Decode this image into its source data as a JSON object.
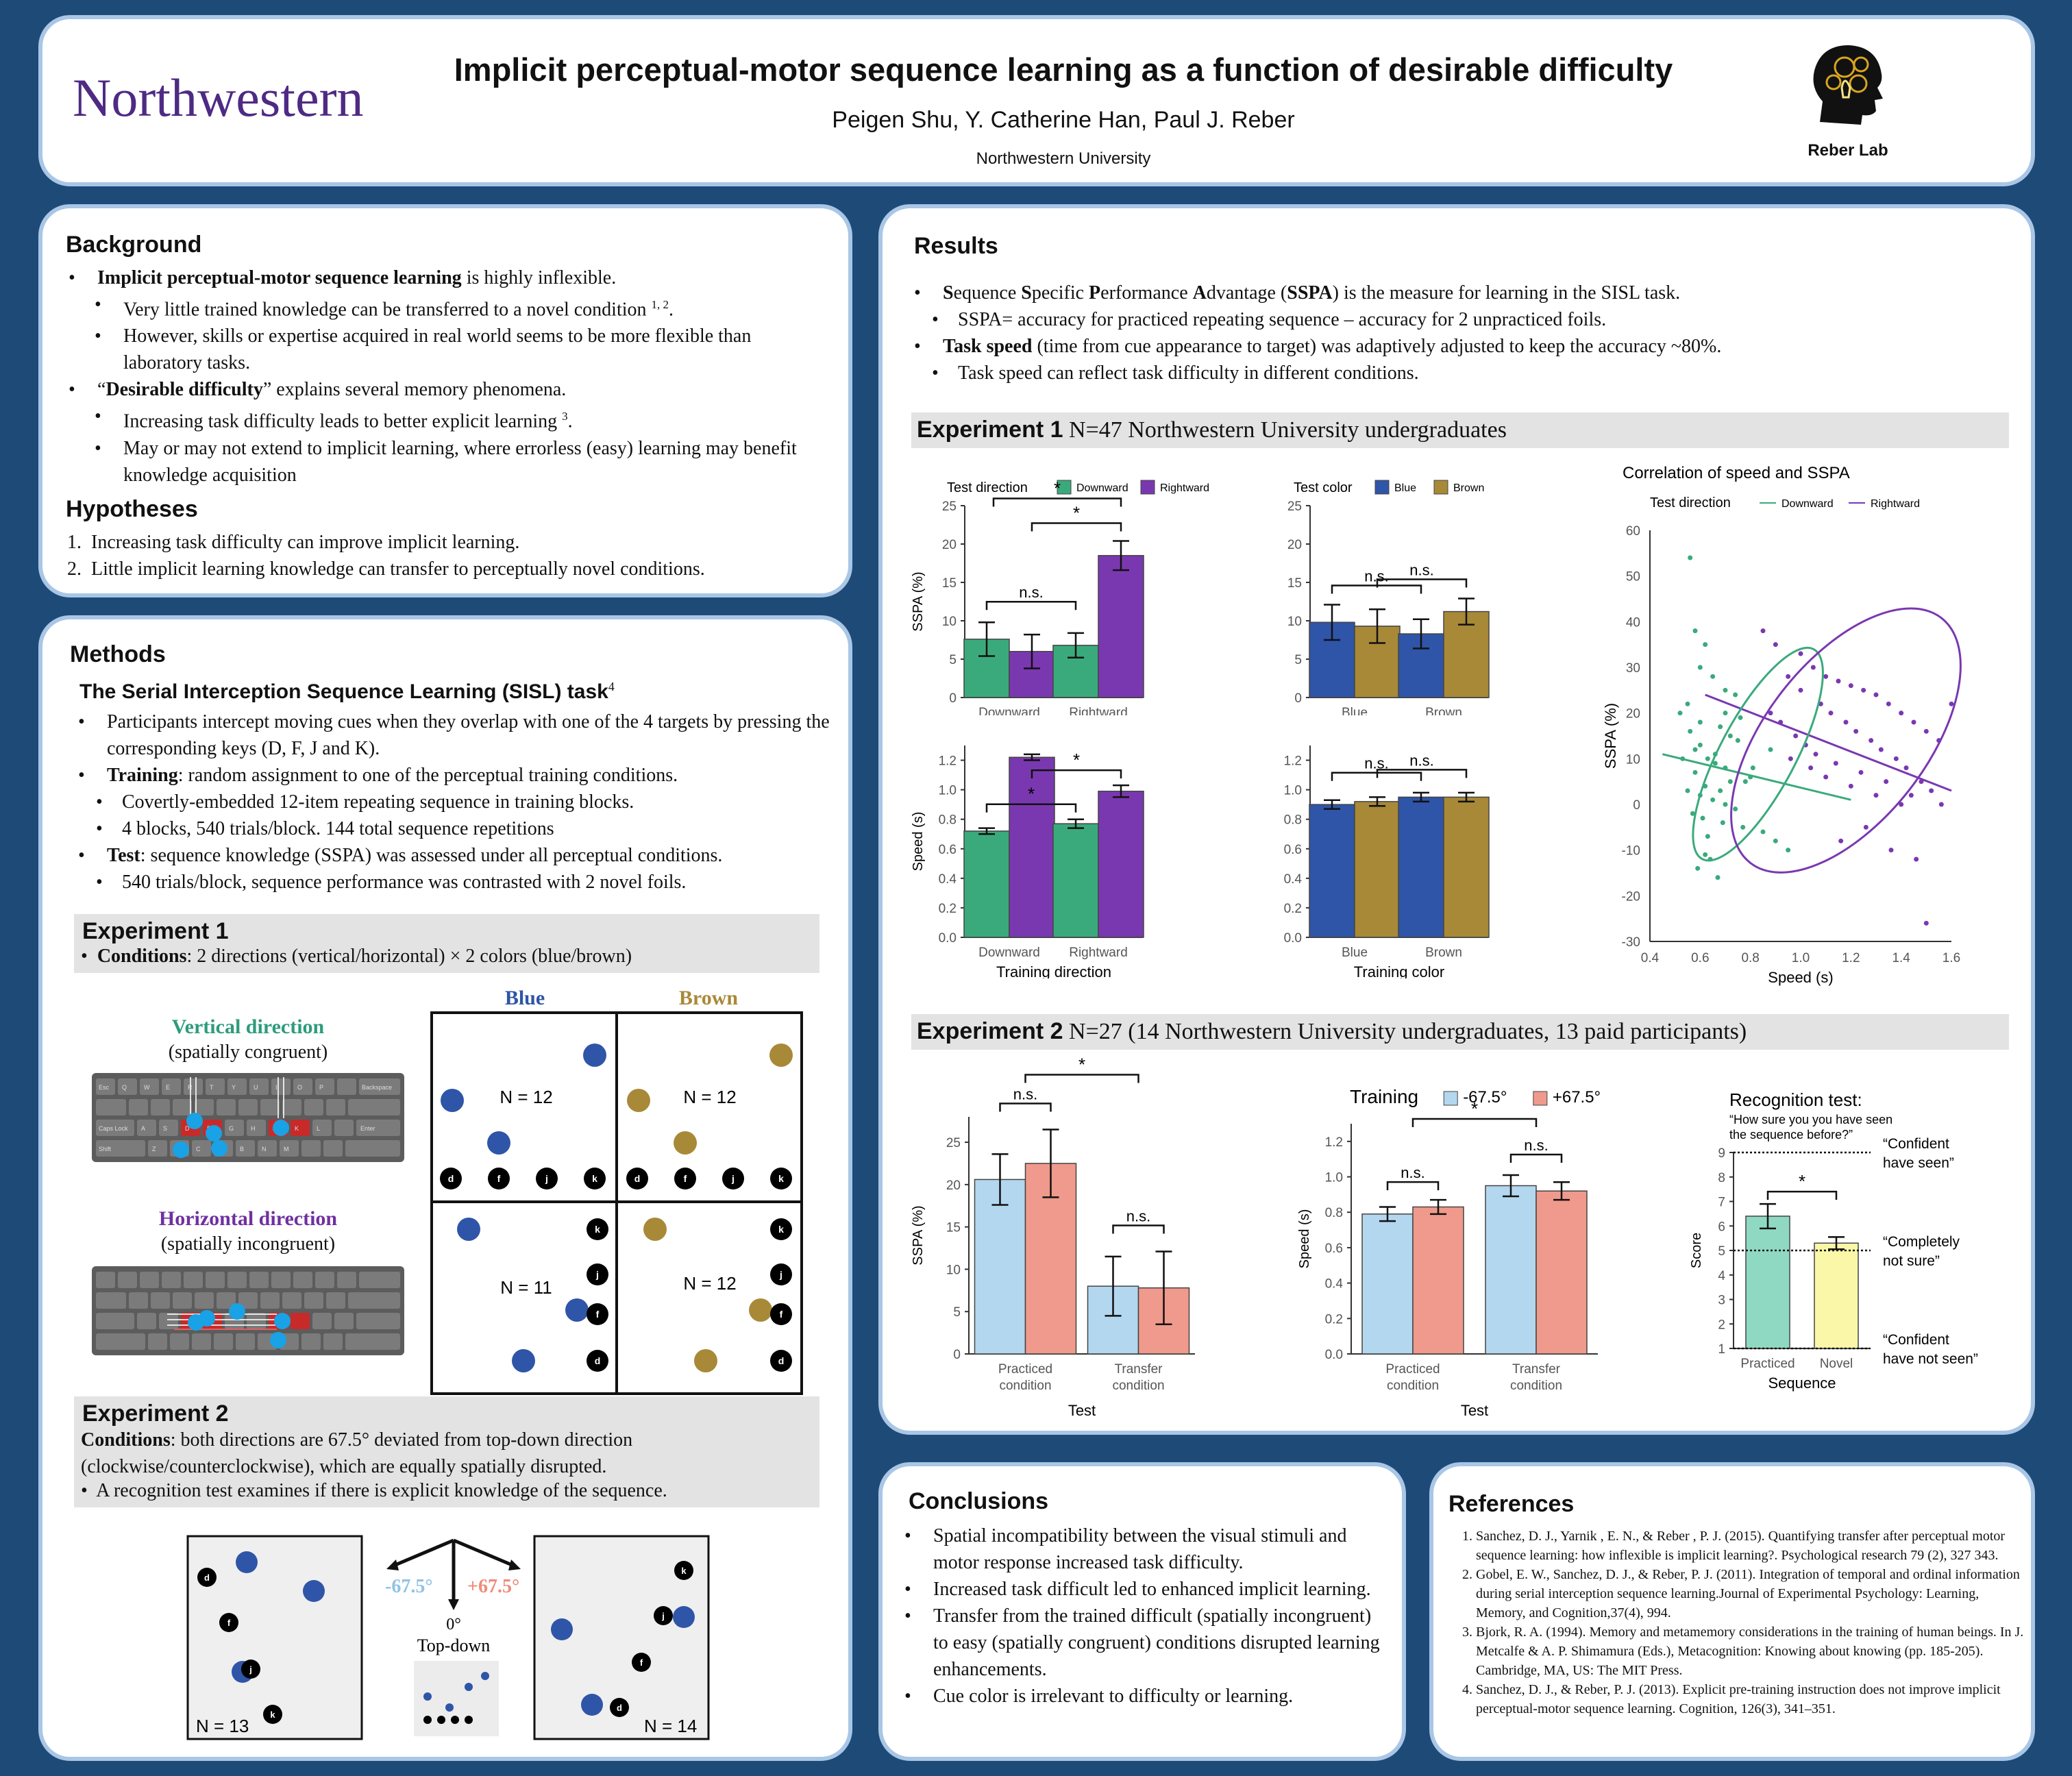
{
  "header": {
    "university": "Northwestern",
    "title": "Implicit perceptual-motor sequence learning as a function of desirable difficulty",
    "authors": "Peigen Shu, Y. Catherine Han, Paul J. Reber",
    "affiliation": "Northwestern University",
    "lab": "Reber Lab"
  },
  "background": {
    "heading": "Background",
    "b1_bold": "Implicit perceptual-motor sequence learning",
    "b1_rest": " is highly inflexible.",
    "b1a": "Very little trained knowledge can be transferred to a novel condition",
    "b1a_sup": "1, 2",
    "b1b": "However, skills or expertise acquired in real world seems to be more flexible than laboratory tasks.",
    "b2_pre": "“",
    "b2_bold": "Desirable difficulty",
    "b2_rest": "” explains several memory phenomena.",
    "b2a": "Increasing task difficulty leads to better explicit learning",
    "b2a_sup": "3",
    "b2b": "May or may not extend to implicit learning, where errorless (easy) learning may benefit knowledge acquisition"
  },
  "hypotheses": {
    "heading": "Hypotheses",
    "items": [
      "1. Increasing task difficulty can improve implicit learning.",
      "2. Little implicit learning knowledge can transfer to perceptually novel conditions."
    ]
  },
  "methods": {
    "heading": "Methods",
    "task_title": "The Serial Interception Sequence Learning (SISL) task",
    "task_sup": "4",
    "m1": "Participants intercept moving cues when they overlap with one of the 4 targets by pressing the corresponding keys (D, F, J and K).",
    "m2_bold": "Training",
    "m2_rest": ": random assignment to one of the perceptual training conditions.",
    "m2a": "Covertly-embedded 12-item repeating sequence in training blocks.",
    "m2b": "4 blocks, 540 trials/block. 144 total sequence repetitions",
    "m3_bold": "Test",
    "m3_rest": ": sequence knowledge (SSPA) was assessed under all  perceptual conditions.",
    "m3a": "540 trials/block, sequence performance was contrasted with 2 novel foils.",
    "exp1_title": "Experiment 1",
    "exp1_cond_bold": "Conditions",
    "exp1_cond_rest": ": 2 directions (vertical/horizontal) × 2 colors (blue/brown)",
    "blue_label": "Blue",
    "brown_label": "Brown",
    "vertical_label": "Vertical direction",
    "vertical_sub": "(spatially congruent)",
    "horizontal_label": "Horizontal direction",
    "horizontal_sub": "(spatially incongruent)",
    "n_tl": "N = 12",
    "n_tr": "N = 12",
    "n_bl": "N = 11",
    "n_br": "N = 12",
    "keys": [
      "d",
      "f",
      "j",
      "k"
    ],
    "exp2_title": "Experiment 2",
    "exp2_cond_bold": "Conditions",
    "exp2_cond_rest": ": both directions are 67.5° deviated from top-down direction (clockwise/counterclockwise), which are equally spatially disrupted.",
    "exp2_b": "A recognition test examines if there is explicit knowledge of the sequence.",
    "ang_neg": "-67.5°",
    "ang_pos": "+67.5°",
    "ang_zero": "0°",
    "topdown": "Top-down",
    "n2_left": "N = 13",
    "n2_right": "N = 14",
    "kb_keys": [
      "Esc",
      "Q",
      "W",
      "E",
      "R",
      "T",
      "Y",
      "U",
      "I",
      "O",
      "P",
      "Backspace",
      "Caps Lock",
      "A",
      "S",
      "D",
      "F",
      "G",
      "H",
      "J",
      "K",
      "L",
      "Enter",
      "Shift",
      "Z",
      "X",
      "C",
      "V",
      "B",
      "N",
      "M"
    ]
  },
  "results": {
    "heading": "Results",
    "r1_bold1": "S",
    "r1_t1": "equence ",
    "r1_bold2": "S",
    "r1_t2": "pecific ",
    "r1_bold3": "P",
    "r1_t3": "erformance ",
    "r1_bold4": "A",
    "r1_t4": "dvantage (",
    "r1_bold5": "SSPA",
    "r1_t5": ") is the measure for learning in the SISL task.",
    "r1a": "SSPA= accuracy for practiced repeating sequence – accuracy for 2 unpracticed foils.",
    "r2_bold": "Task speed",
    "r2_rest": " (time from cue appearance to target) was adaptively adjusted to keep the accuracy ~80%.",
    "r2a": "Task speed can reflect task difficulty in different conditions.",
    "exp1_bold": "Experiment 1",
    "exp1_rest": " N=47 Northwestern University undergraduates",
    "exp2_bold": "Experiment 2",
    "exp2_rest": " N=27 (14 Northwestern University undergraduates, 13 paid participants)"
  },
  "colors": {
    "green": "#3aaa7c",
    "purple": "#7a38b0",
    "blue": "#2f55a8",
    "brown": "#a88938",
    "lightblue": "#b3d7ef",
    "salmon": "#ef9a8c",
    "mint": "#8fd9c2",
    "lightyellow": "#fbf7a8"
  },
  "chart_data": [
    {
      "id": "e1_sspa_dir",
      "type": "bar",
      "legend_title": "Test direction",
      "legend": [
        "Downward",
        "Rightward"
      ],
      "categories": [
        "Downward",
        "Rightward"
      ],
      "series": [
        {
          "name": "Downward",
          "values": [
            7.6,
            6.8
          ],
          "err": [
            2.2,
            1.6
          ]
        },
        {
          "name": "Rightward",
          "values": [
            6.0,
            18.5
          ],
          "err": [
            2.2,
            1.9
          ]
        }
      ],
      "ylabel": "SSPA (%)",
      "ylim": [
        0,
        25
      ],
      "yticks": [
        "0",
        "5",
        "10",
        "15",
        "20",
        "25"
      ],
      "sig": [
        "n.s.",
        "*",
        "*"
      ]
    },
    {
      "id": "e1_sspa_color",
      "type": "bar",
      "legend_title": "Test color",
      "legend": [
        "Blue",
        "Brown"
      ],
      "categories": [
        "Blue",
        "Brown"
      ],
      "series": [
        {
          "name": "Blue",
          "values": [
            9.8,
            8.3
          ],
          "err": [
            2.3,
            1.9
          ]
        },
        {
          "name": "Brown",
          "values": [
            9.3,
            11.2
          ],
          "err": [
            2.2,
            1.7
          ]
        }
      ],
      "ylim": [
        0,
        25
      ],
      "yticks": [
        "0",
        "5",
        "10",
        "15",
        "20",
        "25"
      ],
      "sig": [
        "n.s.",
        "n.s."
      ]
    },
    {
      "id": "e1_speed_dir",
      "type": "bar",
      "categories": [
        "Downward",
        "Rightward"
      ],
      "series": [
        {
          "name": "Downward",
          "values": [
            0.72,
            0.77
          ],
          "err": [
            0.02,
            0.03
          ]
        },
        {
          "name": "Rightward",
          "values": [
            1.22,
            0.99
          ],
          "err": [
            0.02,
            0.04
          ]
        }
      ],
      "ylabel": "Speed (s)",
      "xlabel": "Training direction",
      "ylim": [
        0,
        1.3
      ],
      "yticks": [
        "0.0",
        "0.2",
        "0.4",
        "0.6",
        "0.8",
        "1.0",
        "1.2"
      ],
      "sig": [
        "*",
        "*"
      ]
    },
    {
      "id": "e1_speed_color",
      "type": "bar",
      "categories": [
        "Blue",
        "Brown"
      ],
      "series": [
        {
          "name": "Blue",
          "values": [
            0.9,
            0.95
          ],
          "err": [
            0.03,
            0.03
          ]
        },
        {
          "name": "Brown",
          "values": [
            0.92,
            0.95
          ],
          "err": [
            0.03,
            0.03
          ]
        }
      ],
      "xlabel": "Training color",
      "ylim": [
        0,
        1.3
      ],
      "yticks": [
        "0.0",
        "0.2",
        "0.4",
        "0.6",
        "0.8",
        "1.0",
        "1.2"
      ],
      "sig": [
        "n.s.",
        "n.s."
      ]
    },
    {
      "id": "e1_scatter",
      "type": "scatter",
      "title": "Correlation of speed and SSPA",
      "legend_title": "Test direction",
      "legend": [
        "Downward",
        "Rightward"
      ],
      "xlabel": "Speed (s)",
      "ylabel": "SSPA (%)",
      "xlim": [
        0.4,
        1.6
      ],
      "ylim": [
        -30,
        60
      ],
      "xticks": [
        "0.4",
        "0.6",
        "0.8",
        "1.0",
        "1.2",
        "1.4",
        "1.6"
      ],
      "yticks": [
        "-30",
        "-20",
        "-10",
        "0",
        "10",
        "20",
        "30",
        "40",
        "50",
        "60"
      ],
      "series": [
        {
          "name": "Downward",
          "x": [
            0.56,
            0.58,
            0.62,
            0.6,
            0.65,
            0.7,
            0.55,
            0.52,
            0.6,
            0.68,
            0.72,
            0.75,
            0.58,
            0.63,
            0.66,
            0.7,
            0.8,
            0.78,
            0.62,
            0.55,
            0.6,
            0.65,
            0.7,
            0.74,
            0.57,
            0.61,
            0.69,
            0.77,
            0.85,
            0.9,
            0.95,
            0.64,
            0.59,
            0.67,
            0.72,
            0.81,
            0.66,
            0.6,
            0.56,
            0.7,
            0.74,
            0.63,
            0.68,
            0.58,
            0.62,
            0.53,
            0.88,
            0.76
          ],
          "y": [
            54,
            38,
            35,
            30,
            28,
            25,
            22,
            20,
            18,
            17,
            15,
            14,
            12,
            10,
            9,
            8,
            6,
            5,
            4,
            3,
            2,
            1,
            0,
            -1,
            -2,
            -3,
            -4,
            -5,
            -6,
            -8,
            -10,
            -12,
            -14,
            -16,
            5,
            8,
            11,
            13,
            16,
            20,
            24,
            -7,
            3,
            7,
            -11,
            10,
            12,
            19
          ]
        },
        {
          "name": "Rightward",
          "x": [
            0.85,
            0.9,
            1.0,
            1.05,
            1.1,
            1.15,
            1.2,
            1.25,
            1.3,
            1.35,
            1.4,
            1.45,
            1.5,
            1.55,
            1.6,
            0.95,
            1.0,
            1.08,
            1.12,
            1.18,
            1.22,
            1.28,
            1.32,
            1.38,
            1.42,
            1.48,
            1.52,
            0.88,
            0.92,
            0.98,
            1.02,
            1.06,
            1.14,
            1.24,
            1.34,
            1.44,
            1.56,
            1.26,
            1.16,
            1.36,
            1.46,
            0.96,
            1.04,
            1.1,
            1.2,
            1.3,
            1.4,
            1.5
          ],
          "y": [
            38,
            35,
            33,
            30,
            28,
            27,
            26,
            25,
            24,
            22,
            20,
            18,
            16,
            14,
            22,
            28,
            25,
            22,
            20,
            18,
            16,
            14,
            12,
            10,
            8,
            5,
            3,
            20,
            18,
            15,
            13,
            11,
            9,
            7,
            5,
            2,
            0,
            -5,
            -8,
            -10,
            -12,
            10,
            8,
            6,
            4,
            2,
            0,
            -26
          ]
        }
      ],
      "fit_lines": [
        {
          "name": "Downward",
          "x": [
            0.45,
            1.2
          ],
          "y": [
            11,
            1
          ]
        },
        {
          "name": "Rightward",
          "x": [
            0.62,
            1.6
          ],
          "y": [
            24,
            3
          ]
        }
      ]
    },
    {
      "id": "e2_sspa",
      "type": "bar",
      "legend_title": "Training",
      "legend": [
        "-67.5°",
        "+67.5°"
      ],
      "categories": [
        "Practiced\ncondition",
        "Transfer\ncondition"
      ],
      "series": [
        {
          "name": "-67.5°",
          "values": [
            20.6,
            8.0
          ],
          "err": [
            3.0,
            3.5
          ]
        },
        {
          "name": "+67.5°",
          "values": [
            22.5,
            7.8
          ],
          "err": [
            4.0,
            4.3
          ]
        }
      ],
      "ylabel": "SSPA (%)",
      "xlabel": "Test",
      "ylim": [
        0,
        28
      ],
      "yticks": [
        "0",
        "5",
        "10",
        "15",
        "20",
        "25"
      ],
      "sig": [
        "n.s.",
        "n.s.",
        "*"
      ]
    },
    {
      "id": "e2_speed",
      "type": "bar",
      "categories": [
        "Practiced\ncondition",
        "Transfer\ncondition"
      ],
      "series": [
        {
          "name": "-67.5°",
          "values": [
            0.79,
            0.95
          ],
          "err": [
            0.04,
            0.06
          ]
        },
        {
          "name": "+67.5°",
          "values": [
            0.83,
            0.92
          ],
          "err": [
            0.04,
            0.05
          ]
        }
      ],
      "ylabel": "Speed (s)",
      "xlabel": "Test",
      "ylim": [
        0,
        1.3
      ],
      "yticks": [
        "0.0",
        "0.2",
        "0.4",
        "0.6",
        "0.8",
        "1.0",
        "1.2"
      ],
      "sig": [
        "n.s.",
        "n.s.",
        "*"
      ]
    },
    {
      "id": "e2_recog",
      "type": "bar",
      "title": "Recognition test:",
      "subtitle": "“How sure you you have seen the sequence before?”",
      "categories": [
        "Practiced",
        "Novel"
      ],
      "values": [
        6.4,
        5.3
      ],
      "err": [
        0.5,
        0.25
      ],
      "ylabel": "Score",
      "xlabel": "Sequence",
      "ylim": [
        1,
        9
      ],
      "yticks": [
        "1",
        "2",
        "3",
        "4",
        "5",
        "6",
        "7",
        "8",
        "9"
      ],
      "sig": [
        "*"
      ],
      "annotations": [
        "“Confident have seen”",
        "“Completely not sure”",
        "“Confident have not seen”"
      ]
    }
  ],
  "conclusions": {
    "heading": "Conclusions",
    "items": [
      "Spatial incompatibility between the visual stimuli and motor response increased task difficulty.",
      "Increased task difficult led to enhanced implicit learning.",
      "Transfer from the trained difficult (spatially incongruent) to easy (spatially congruent) conditions disrupted learning enhancements.",
      "Cue color is irrelevant to difficulty or learning."
    ]
  },
  "references": {
    "heading": "References",
    "items": [
      "Sanchez, D. J., Yarnik , E. N., & Reber , P. J. (2015). Quantifying transfer after perceptual motor sequence learning: how inflexible is implicit learning?. Psychological research 79 (2), 327 343.",
      "Gobel, E. W., Sanchez, D. J., & Reber, P. J. (2011). Integration of temporal and ordinal information during serial interception sequence learning.Journal of Experimental Psychology: Learning, Memory, and Cognition,37(4), 994.",
      "Bjork, R. A. (1994). Memory and metamemory considerations in the training of human beings. In J. Metcalfe & A. P. Shimamura (Eds.), Metacognition: Knowing about knowing (pp. 185-205). Cambridge, MA, US: The MIT Press.",
      "Sanchez, D. J., & Reber, P. J. (2013). Explicit pre-training instruction does not improve implicit perceptual-motor sequence learning. Cognition, 126(3), 341–351."
    ]
  }
}
